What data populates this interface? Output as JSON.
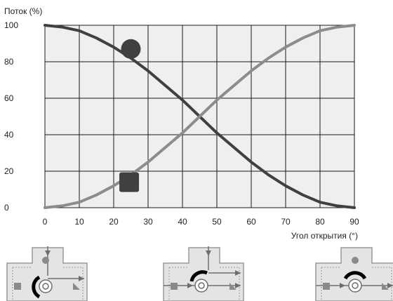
{
  "chart_data": {
    "type": "line",
    "ylabel": "Поток (%)",
    "xlabel": "Угол открытия (°)",
    "xlim": [
      0,
      90
    ],
    "ylim": [
      0,
      100
    ],
    "x_ticks": [
      "0",
      "10",
      "20",
      "30",
      "40",
      "50",
      "60",
      "70",
      "80",
      "90"
    ],
    "y_ticks": [
      "0",
      "20",
      "40",
      "60",
      "80",
      "100"
    ],
    "grid": true,
    "x": [
      0,
      5,
      10,
      15,
      20,
      25,
      30,
      35,
      40,
      45,
      50,
      55,
      60,
      65,
      70,
      75,
      80,
      85,
      90
    ],
    "series": [
      {
        "color": "#404040",
        "marker": "circle",
        "marker_at": [
          25,
          87
        ],
        "values": [
          100,
          99,
          97,
          93,
          88,
          82,
          75,
          67,
          59,
          50,
          41,
          33,
          25,
          18,
          12,
          7,
          3,
          1,
          0
        ]
      },
      {
        "color": "#8c8c8c",
        "marker": "square",
        "marker_at": [
          24.5,
          14
        ],
        "values": [
          0,
          1,
          3,
          7,
          12,
          18,
          25,
          33,
          41,
          50,
          59,
          67,
          75,
          82,
          88,
          93,
          97,
          99,
          100
        ]
      }
    ],
    "colors": {
      "plot_bg": "#efefef",
      "grid": "#1a1a1a",
      "valve_body": "#e4e4e4",
      "valve_outline": "#9a9a9a"
    }
  },
  "schematics": [
    {
      "icon": "valve-schematic-left-position"
    },
    {
      "icon": "valve-schematic-middle-position"
    },
    {
      "icon": "valve-schematic-top-position"
    }
  ]
}
